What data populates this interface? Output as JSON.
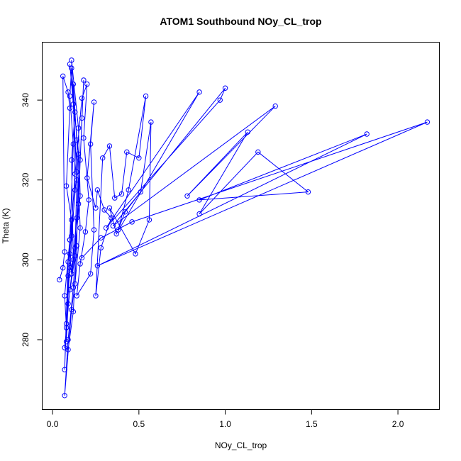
{
  "chart_data": {
    "type": "line",
    "title": "ATOM1 Southbound NOy_CL_trop",
    "xlabel": "NOy_CL_trop",
    "ylabel": "Theta (K)",
    "xlim": [
      -0.06,
      2.24
    ],
    "ylim": [
      262.5,
      354.5
    ],
    "xticks": [
      0.0,
      0.5,
      1.0,
      1.5,
      2.0
    ],
    "xtick_labels": [
      "0.0",
      "0.5",
      "1.0",
      "1.5",
      "2.0"
    ],
    "yticks": [
      280,
      300,
      320,
      340
    ],
    "ytick_labels": [
      "280",
      "300",
      "320",
      "340"
    ],
    "grid": false,
    "legend": "none",
    "series": [
      {
        "color": "#0000ff",
        "marker": "circle-open",
        "points": [
          [
            0.04,
            295.0
          ],
          [
            0.06,
            298.0
          ],
          [
            0.07,
            302.0
          ],
          [
            0.06,
            346.0
          ],
          [
            0.09,
            342.0
          ],
          [
            0.1,
            338.0
          ],
          [
            0.08,
            318.5
          ],
          [
            0.11,
            310.0
          ],
          [
            0.1,
            305.0
          ],
          [
            0.07,
            291.0
          ],
          [
            0.08,
            283.0
          ],
          [
            0.09,
            296.0
          ],
          [
            0.12,
            300.0
          ],
          [
            0.11,
            325.0
          ],
          [
            0.13,
            337.0
          ],
          [
            0.11,
            348.0
          ],
          [
            0.1,
            341.0
          ],
          [
            0.12,
            329.0
          ],
          [
            0.1,
            305.0
          ],
          [
            0.08,
            279.5
          ],
          [
            0.09,
            289.0
          ],
          [
            0.13,
            301.0
          ],
          [
            0.14,
            320.0
          ],
          [
            0.11,
            350.0
          ],
          [
            0.15,
            333.0
          ],
          [
            0.16,
            316.0
          ],
          [
            0.13,
            303.0
          ],
          [
            0.1,
            292.5
          ],
          [
            0.07,
            278.0
          ],
          [
            0.09,
            277.5
          ],
          [
            0.12,
            287.0
          ],
          [
            0.14,
            303.5
          ],
          [
            0.15,
            326.5
          ],
          [
            0.1,
            349.0
          ],
          [
            0.12,
            339.0
          ],
          [
            0.14,
            322.0
          ],
          [
            0.11,
            306.0
          ],
          [
            0.09,
            299.5
          ],
          [
            0.07,
            272.5
          ],
          [
            0.08,
            284.0
          ],
          [
            0.1,
            298.0
          ],
          [
            0.13,
            317.5
          ],
          [
            0.12,
            344.0
          ],
          [
            0.14,
            330.0
          ],
          [
            0.16,
            308.0
          ],
          [
            0.13,
            294.0
          ],
          [
            0.11,
            287.5
          ],
          [
            0.07,
            266.0
          ],
          [
            0.09,
            280.0
          ],
          [
            0.12,
            293.0
          ],
          [
            0.15,
            314.0
          ],
          [
            0.17,
            335.5
          ],
          [
            0.18,
            345.0
          ],
          [
            0.16,
            325.0
          ],
          [
            0.14,
            310.5
          ],
          [
            0.11,
            296.5
          ],
          [
            0.1,
            301.5
          ],
          [
            0.13,
            321.5
          ],
          [
            0.17,
            340.5
          ],
          [
            0.2,
            344.0
          ],
          [
            0.18,
            330.5
          ],
          [
            0.21,
            315.0
          ],
          [
            0.19,
            307.0
          ],
          [
            0.16,
            299.0
          ],
          [
            0.14,
            291.0
          ],
          [
            0.22,
            296.5
          ],
          [
            0.24,
            307.5
          ],
          [
            0.22,
            329.0
          ],
          [
            0.24,
            339.5
          ],
          [
            0.2,
            320.5
          ],
          [
            0.25,
            313.0
          ],
          [
            0.26,
            317.5
          ],
          [
            0.3,
            312.5
          ],
          [
            0.34,
            310.5
          ],
          [
            0.28,
            303.0
          ],
          [
            0.25,
            291.0
          ],
          [
            0.29,
            325.5
          ],
          [
            0.33,
            328.5
          ],
          [
            0.36,
            315.5
          ],
          [
            0.4,
            316.5
          ],
          [
            0.43,
            327.0
          ],
          [
            0.5,
            325.5
          ],
          [
            0.54,
            341.0
          ],
          [
            0.44,
            317.5
          ],
          [
            0.38,
            307.5
          ],
          [
            0.42,
            312.0
          ],
          [
            0.51,
            317.0
          ],
          [
            0.57,
            334.5
          ],
          [
            0.56,
            310.0
          ],
          [
            0.48,
            301.5
          ],
          [
            0.33,
            313.0
          ],
          [
            0.37,
            306.5
          ],
          [
            0.85,
            342.0
          ],
          [
            0.31,
            308.0
          ],
          [
            0.97,
            340.0
          ],
          [
            1.0,
            343.0
          ],
          [
            0.35,
            308.5
          ],
          [
            1.29,
            338.5
          ],
          [
            0.78,
            316.0
          ],
          [
            1.13,
            332.0
          ],
          [
            0.85,
            311.5
          ],
          [
            1.19,
            327.0
          ],
          [
            1.48,
            317.0
          ],
          [
            0.85,
            315.0
          ],
          [
            1.82,
            331.5
          ],
          [
            0.26,
            298.5
          ],
          [
            2.17,
            334.5
          ],
          [
            0.46,
            309.5
          ],
          [
            0.28,
            305.5
          ],
          [
            0.17,
            300.5
          ]
        ]
      }
    ]
  }
}
